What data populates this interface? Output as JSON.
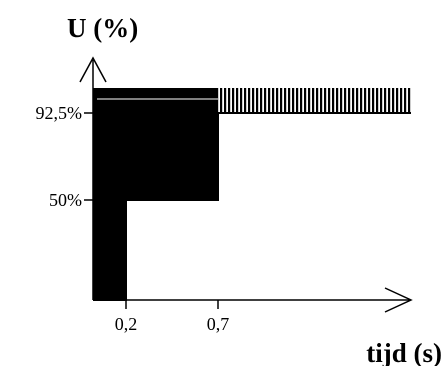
{
  "chart_data": {
    "type": "area",
    "ylabel": "U (%)",
    "xlabel": "tijd (s)",
    "x_ticks": [
      "0,2",
      "0,7"
    ],
    "y_ticks": [
      "92,5%",
      "50%"
    ],
    "x_tick_values": [
      0.2,
      0.7
    ],
    "y_tick_values": [
      92.5,
      50
    ],
    "y_top_value": 100,
    "xlim": [
      0,
      2.0
    ],
    "ylim": [
      0,
      100
    ],
    "regions": [
      {
        "from_x": 0,
        "to_x": 0.2,
        "from_y": 0,
        "to_y": 100,
        "fill": "solid"
      },
      {
        "from_x": 0.2,
        "to_x": 0.7,
        "from_y": 50,
        "to_y": 100,
        "fill": "solid"
      },
      {
        "from_x": 0.7,
        "to_x": 2.0,
        "from_y": 92.5,
        "to_y": 100,
        "fill": "hatched"
      }
    ],
    "boundary_line": [
      {
        "x": 0,
        "y": 0
      },
      {
        "x": 0.2,
        "y": 0
      },
      {
        "x": 0.2,
        "y": 50
      },
      {
        "x": 0.7,
        "y": 50
      },
      {
        "x": 0.7,
        "y": 92.5
      },
      {
        "x": 2.0,
        "y": 92.5
      }
    ]
  },
  "colors": {
    "ink": "#000000",
    "hatch_light": "#ffffff",
    "background": "#ffffff"
  }
}
